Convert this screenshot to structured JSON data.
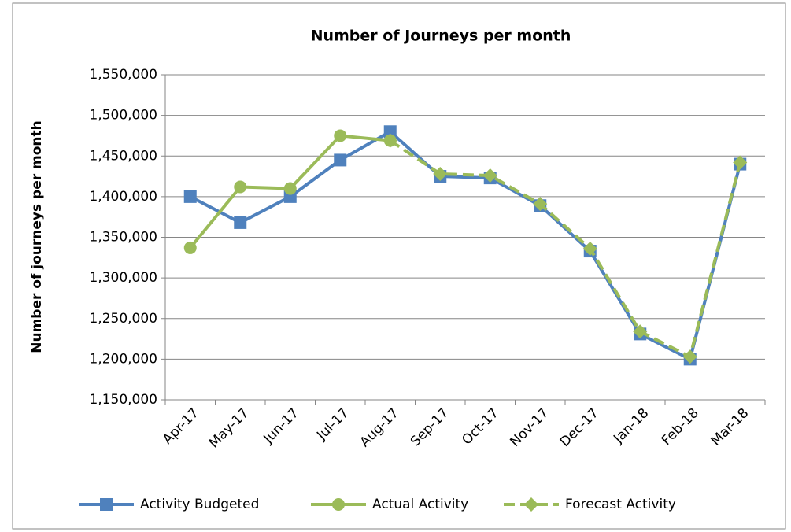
{
  "chart_data": {
    "type": "line",
    "title": "Number of Journeys per month",
    "y_label": "Number of journeys per month",
    "categories": [
      "Apr-17",
      "May-17",
      "Jun-17",
      "Jul-17",
      "Aug-17",
      "Sep-17",
      "Oct-17",
      "Nov-17",
      "Dec-17",
      "Jan-18",
      "Feb-18",
      "Mar-18"
    ],
    "series": [
      {
        "name": "Activity Budgeted",
        "color": "#4f81bd",
        "marker": "square",
        "dashed": false,
        "values": [
          1400000,
          1368000,
          1400000,
          1445000,
          1480000,
          1425000,
          1423000,
          1389000,
          1333000,
          1231000,
          1200000,
          1440000
        ]
      },
      {
        "name": "Actual Activity",
        "color": "#9bbb59",
        "marker": "circle",
        "dashed": false,
        "values": [
          1337000,
          1412000,
          1410000,
          1475000,
          1469000,
          null,
          null,
          null,
          null,
          null,
          null,
          null
        ]
      },
      {
        "name": "Forecast Activity",
        "color": "#9bbb59",
        "marker": "diamond",
        "dashed": true,
        "values": [
          null,
          null,
          null,
          null,
          1469000,
          1428000,
          1426000,
          1391000,
          1336000,
          1234000,
          1203000,
          1442000
        ]
      }
    ],
    "ylim": [
      1150000,
      1550000
    ],
    "yticks": [
      {
        "value": 1150000,
        "label": "1,150,000"
      },
      {
        "value": 1200000,
        "label": "1,200,000"
      },
      {
        "value": 1250000,
        "label": "1,250,000"
      },
      {
        "value": 1300000,
        "label": "1,300,000"
      },
      {
        "value": 1350000,
        "label": "1,350,000"
      },
      {
        "value": 1400000,
        "label": "1,400,000"
      },
      {
        "value": 1450000,
        "label": "1,450,000"
      },
      {
        "value": 1500000,
        "label": "1,500,000"
      },
      {
        "value": 1550000,
        "label": "1,550,000"
      }
    ],
    "grid": true,
    "legend": "bottom"
  }
}
